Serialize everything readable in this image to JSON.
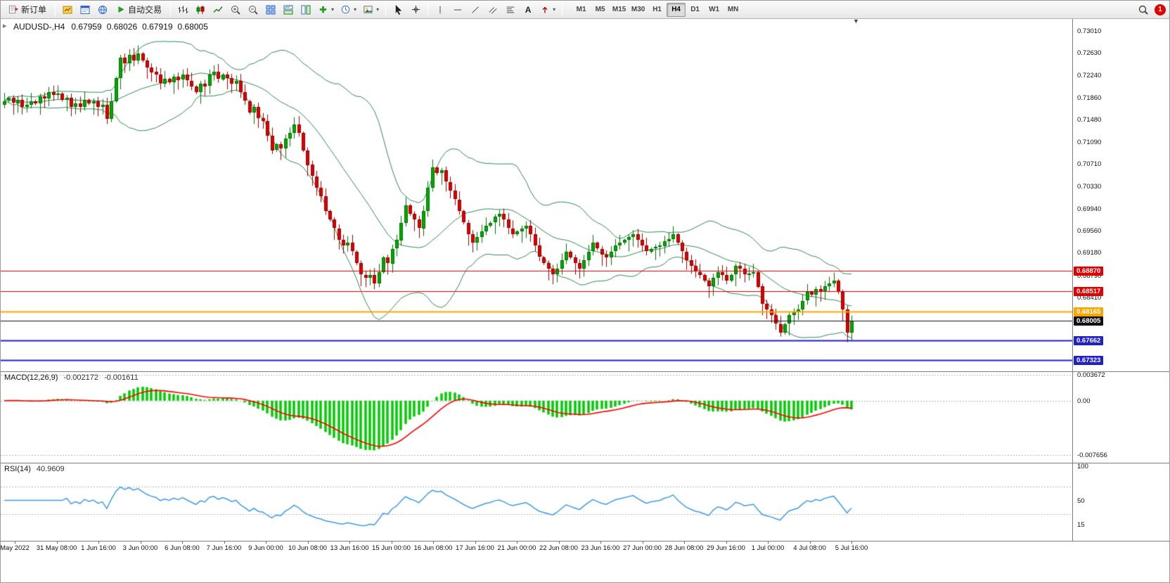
{
  "toolbar": {
    "new_order_label": "新订单",
    "autotrading_label": "自动交易",
    "timeframes": [
      "M1",
      "M5",
      "M15",
      "M30",
      "H1",
      "H4",
      "D1",
      "W1",
      "MN"
    ],
    "active_timeframe": "H4",
    "notification_count": "1",
    "text_tool_glyph": "A",
    "dropdown_glyph": "▾"
  },
  "chart": {
    "title": "AUDUSD-,H4",
    "open": "0.67959",
    "high": "0.68026",
    "low": "0.67919",
    "close": "0.68005",
    "one_click_glyph": "▸",
    "shift_marker_glyph": "▼",
    "price_range": {
      "min": 0.67133,
      "max": 0.73215
    }
  },
  "price_axis": {
    "ticks": [
      "0.73010",
      "0.72630",
      "0.72240",
      "0.71860",
      "0.71480",
      "0.71090",
      "0.70710",
      "0.70330",
      "0.69940",
      "0.69560",
      "0.69180",
      "0.68790",
      "0.68410"
    ],
    "badges": [
      {
        "value": "0.68870",
        "color": "#E00000"
      },
      {
        "value": "0.68517",
        "color": "#E00000"
      },
      {
        "value": "0.68165",
        "color": "#FFA500"
      },
      {
        "value": "0.68005",
        "color": "#111111"
      },
      {
        "value": "0.67662",
        "color": "#2020C8"
      },
      {
        "value": "0.67323",
        "color": "#2020C8"
      }
    ]
  },
  "hlines": [
    {
      "price": 0.6887,
      "color": "#E00000",
      "width": 1
    },
    {
      "price": 0.68517,
      "color": "#E00000",
      "width": 1
    },
    {
      "price": 0.68165,
      "color": "#FFA500",
      "width": 2
    },
    {
      "price": 0.68005,
      "color": "#111111",
      "width": 1
    },
    {
      "price": 0.67662,
      "color": "#2020C8",
      "width": 2
    },
    {
      "price": 0.67323,
      "color": "#2020C8",
      "width": 2
    }
  ],
  "macd": {
    "label": "MACD(12,26,9)",
    "value_main": "-0.002172",
    "value_signal": "-0.001611",
    "range": {
      "min": -0.008501,
      "max": 0.004058
    },
    "axis": [
      {
        "text": "0.003672",
        "value": 0.003672
      },
      {
        "text": "0.00",
        "value": 0
      },
      {
        "text": "-0.007656",
        "value": -0.007656
      }
    ]
  },
  "rsi": {
    "label": "RSI(14)",
    "value": "40.9609",
    "range": {
      "min": -8,
      "max": 104
    },
    "axis": [
      {
        "text": "100",
        "value": 100
      },
      {
        "text": "50",
        "value": 50
      },
      {
        "text": "15",
        "value": 15
      }
    ],
    "levels": [
      70,
      30
    ]
  },
  "time_axis": {
    "labels": [
      "May 2022",
      "31 May 08:00",
      "1 Jun 16:00",
      "3 Jun 00:00",
      "6 Jun 08:00",
      "7 Jun 16:00",
      "9 Jun 00:00",
      "10 Jun 08:00",
      "13 Jun 16:00",
      "15 Jun 00:00",
      "16 Jun 08:00",
      "17 Jun 16:00",
      "21 Jun 00:00",
      "22 Jun 08:00",
      "23 Jun 16:00",
      "27 Jun 00:00",
      "28 Jun 08:00",
      "29 Jun 16:00",
      "1 Jul 00:00",
      "4 Jul 08:00",
      "5 Jul 16:00"
    ]
  },
  "colors": {
    "candle_up": "#00AA00",
    "candle_up_border": "#006E00",
    "candle_down": "#E00000",
    "candle_down_border": "#960000",
    "bollinger": "#2E8B57",
    "macd_histogram": "#00CC00",
    "macd_signal": "#FF0000",
    "rsi_line": "#3E9BE9",
    "grid_dotted": "#B5B5B5"
  },
  "chart_data": {
    "type": "candlestick",
    "symbol": "AUDUSD-",
    "timeframe": "H4",
    "last_quote": {
      "open": 0.67959,
      "high": 0.68026,
      "low": 0.67919,
      "close": 0.68005
    },
    "horizontal_levels": [
      0.6887,
      0.68517,
      0.68165,
      0.68005,
      0.67662,
      0.67323
    ],
    "closes": [
      0.718,
      0.7185,
      0.7176,
      0.7182,
      0.717,
      0.7174,
      0.718,
      0.7176,
      0.7188,
      0.7184,
      0.7195,
      0.719,
      0.7193,
      0.7182,
      0.7186,
      0.717,
      0.7176,
      0.717,
      0.7182,
      0.7176,
      0.718,
      0.717,
      0.7174,
      0.715,
      0.718,
      0.722,
      0.7255,
      0.7245,
      0.726,
      0.725,
      0.7262,
      0.725,
      0.7238,
      0.723,
      0.7225,
      0.721,
      0.7218,
      0.7212,
      0.7222,
      0.7216,
      0.7225,
      0.7215,
      0.7205,
      0.7195,
      0.721,
      0.7205,
      0.7225,
      0.723,
      0.7218,
      0.7226,
      0.722,
      0.721,
      0.7215,
      0.7195,
      0.718,
      0.716,
      0.717,
      0.715,
      0.7145,
      0.712,
      0.7095,
      0.7105,
      0.7098,
      0.7115,
      0.7125,
      0.714,
      0.7125,
      0.7095,
      0.707,
      0.705,
      0.703,
      0.7015,
      0.699,
      0.6975,
      0.696,
      0.694,
      0.693,
      0.6935,
      0.692,
      0.69,
      0.688,
      0.6875,
      0.688,
      0.6865,
      0.6885,
      0.691,
      0.69,
      0.6925,
      0.694,
      0.697,
      0.7,
      0.6985,
      0.6975,
      0.696,
      0.699,
      0.703,
      0.7065,
      0.7055,
      0.706,
      0.704,
      0.7025,
      0.701,
      0.699,
      0.697,
      0.695,
      0.6935,
      0.6945,
      0.6955,
      0.6965,
      0.697,
      0.698,
      0.6985,
      0.6975,
      0.696,
      0.695,
      0.6955,
      0.696,
      0.6965,
      0.695,
      0.693,
      0.691,
      0.69,
      0.689,
      0.688,
      0.689,
      0.6905,
      0.692,
      0.691,
      0.69,
      0.689,
      0.6905,
      0.692,
      0.6935,
      0.6925,
      0.6915,
      0.691,
      0.692,
      0.693,
      0.6935,
      0.694,
      0.6945,
      0.695,
      0.694,
      0.693,
      0.692,
      0.6925,
      0.6928,
      0.693,
      0.6938,
      0.6942,
      0.695,
      0.6935,
      0.692,
      0.6905,
      0.6895,
      0.6885,
      0.688,
      0.687,
      0.686,
      0.6875,
      0.6885,
      0.688,
      0.687,
      0.688,
      0.6895,
      0.689,
      0.688,
      0.6882,
      0.6885,
      0.686,
      0.683,
      0.682,
      0.681,
      0.6795,
      0.678,
      0.6795,
      0.681,
      0.6815,
      0.682,
      0.6835,
      0.685,
      0.6845,
      0.6855,
      0.685,
      0.686,
      0.6865,
      0.687,
      0.685,
      0.682,
      0.678,
      0.68005
    ],
    "indicators": {
      "bollinger": {
        "period": 20,
        "deviation": 2
      },
      "macd": {
        "fast": 12,
        "slow": 26,
        "signal": 9,
        "main": -0.002172,
        "signal_value": -0.001611
      },
      "rsi": {
        "period": 14,
        "value": 40.9609,
        "levels": [
          70,
          30
        ]
      }
    }
  }
}
